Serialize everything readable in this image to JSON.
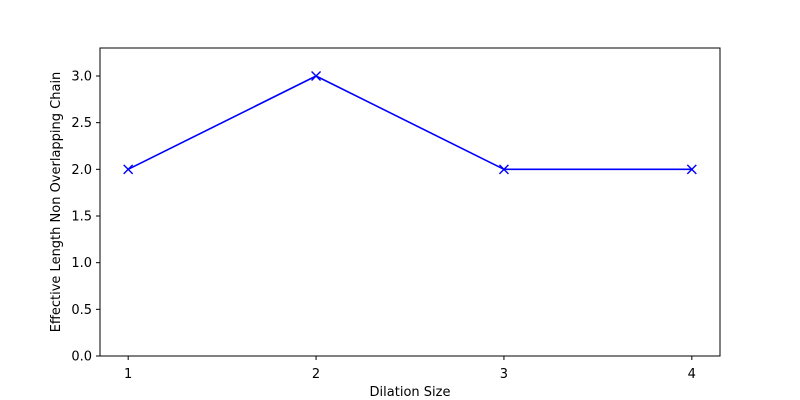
{
  "chart_data": {
    "type": "line",
    "title": "",
    "xlabel": "Dilation Size",
    "ylabel": "Effective Length Non Overlapping Chain",
    "x": [
      1,
      2,
      3,
      4
    ],
    "series": [
      {
        "values": [
          2.0,
          3.0,
          2.0,
          2.0
        ],
        "color": "#0000ff",
        "marker": "x"
      }
    ],
    "xlim": [
      0.85,
      4.15
    ],
    "ylim": [
      0.0,
      3.3
    ],
    "xticks": [
      1,
      2,
      3,
      4
    ],
    "xtick_labels": [
      "1",
      "2",
      "3",
      "4"
    ],
    "yticks": [
      0.0,
      0.5,
      1.0,
      1.5,
      2.0,
      2.5,
      3.0
    ],
    "ytick_labels": [
      "0.0",
      "0.5",
      "1.0",
      "1.5",
      "2.0",
      "2.5",
      "3.0"
    ],
    "grid": false,
    "legend": "none"
  }
}
